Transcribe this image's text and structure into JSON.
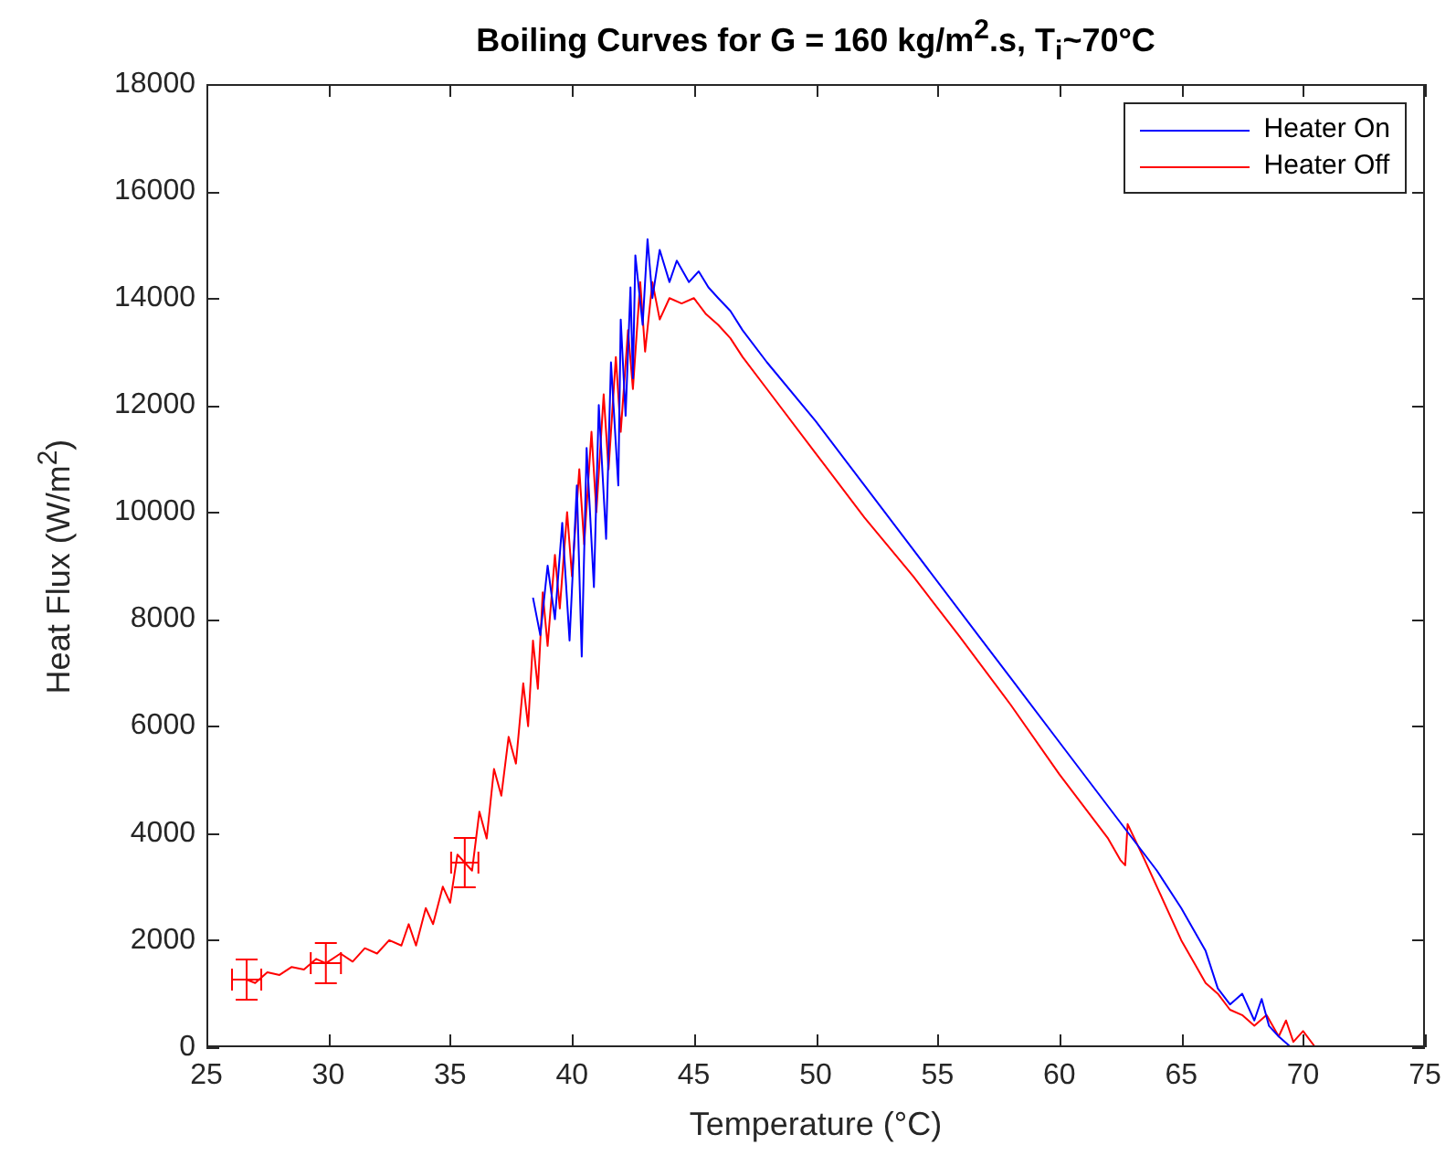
{
  "chart_data": {
    "type": "line",
    "title": "Boiling Curves for G = 160 kg/m$^{2}$.s, T$_{i}$~70°C",
    "xlabel": "Temperature (°C)",
    "ylabel": "Heat Flux (W/m$^{2}$)",
    "xlim": [
      25,
      75
    ],
    "xticks": [
      25,
      30,
      35,
      40,
      45,
      50,
      55,
      60,
      65,
      70,
      75
    ],
    "ylim": [
      0,
      18000
    ],
    "yticks": [
      0,
      2000,
      4000,
      6000,
      8000,
      10000,
      12000,
      14000,
      16000,
      18000
    ],
    "grid": false,
    "legend": "top right",
    "marker": "none",
    "line_style": "solid",
    "series": [
      {
        "name": "Heater On",
        "color": "#0000ff",
        "x": [
          38.4,
          38.7,
          39,
          39.3,
          39.6,
          39.9,
          40.2,
          40.4,
          40.6,
          40.9,
          41.1,
          41.4,
          41.6,
          41.9,
          42,
          42.2,
          42.4,
          42.5,
          42.6,
          42.9,
          43.1,
          43.3,
          43.6,
          44,
          44.3,
          44.8,
          45.2,
          45.6,
          46,
          46.5,
          47,
          48,
          50,
          52,
          54,
          56.7,
          58,
          60,
          62,
          64,
          65,
          66,
          66.5,
          67,
          67.5,
          68,
          68.3,
          68.6,
          69,
          69.5
        ],
        "values": [
          8400,
          7700,
          9000,
          8000,
          9800,
          7600,
          10500,
          7300,
          11200,
          8600,
          12000,
          9500,
          12800,
          10500,
          13600,
          11800,
          14200,
          12500,
          14800,
          13500,
          15100,
          14000,
          14900,
          14300,
          14700,
          14300,
          14500,
          14200,
          14000,
          13760,
          13400,
          12800,
          11700,
          10500,
          9300,
          7680,
          6900,
          5700,
          4500,
          3300,
          2600,
          1800,
          1100,
          800,
          1000,
          500,
          900,
          400,
          200,
          0
        ]
      },
      {
        "name": "Heater Off",
        "color": "#ff0000",
        "x": [
          26.65,
          27,
          27.5,
          28,
          28.5,
          29,
          29.5,
          29.9,
          30.5,
          31,
          31.5,
          32,
          32.5,
          33,
          33.3,
          33.6,
          34,
          34.3,
          34.7,
          35,
          35.3,
          35.6,
          35.9,
          36.2,
          36.5,
          36.8,
          37.1,
          37.4,
          37.7,
          38,
          38.2,
          38.4,
          38.6,
          38.8,
          39,
          39.3,
          39.5,
          39.8,
          40,
          40.3,
          40.5,
          40.8,
          41,
          41.3,
          41.5,
          41.8,
          42,
          42.3,
          42.5,
          42.8,
          43,
          43.3,
          43.6,
          44,
          44.5,
          45,
          45.5,
          46,
          46.5,
          47,
          48,
          50,
          52,
          54,
          55.9,
          58,
          60,
          62,
          62.5,
          62.7,
          62.8,
          63.5,
          64,
          64.5,
          65,
          65.5,
          66,
          66.5,
          67,
          67.5,
          68,
          68.5,
          69,
          69.3,
          69.6,
          70,
          70.5
        ],
        "values": [
          1264,
          1200,
          1400,
          1350,
          1500,
          1450,
          1650,
          1570,
          1750,
          1600,
          1850,
          1750,
          2000,
          1900,
          2300,
          1900,
          2600,
          2300,
          3000,
          2700,
          3600,
          3450,
          3300,
          4400,
          3900,
          5200,
          4700,
          5800,
          5300,
          6800,
          6000,
          7600,
          6700,
          8500,
          7500,
          9200,
          8200,
          10000,
          8800,
          10800,
          9400,
          11500,
          10000,
          12200,
          10800,
          12900,
          11500,
          13400,
          12300,
          14300,
          13000,
          14300,
          13600,
          14000,
          13900,
          14000,
          13700,
          13500,
          13250,
          12900,
          12300,
          11100,
          9900,
          8800,
          7680,
          6400,
          5100,
          3900,
          3500,
          3400,
          4170,
          3500,
          3000,
          2500,
          2000,
          1600,
          1200,
          1000,
          700,
          600,
          400,
          600,
          200,
          500,
          100,
          300,
          0
        ],
        "errors": [
          375,
          null,
          null,
          null,
          null,
          null,
          null,
          375,
          null,
          null,
          null,
          null,
          null,
          null,
          null,
          null,
          null,
          null,
          null,
          null,
          null,
          460,
          null,
          null,
          null,
          null,
          null,
          null,
          null,
          null,
          null,
          null,
          null,
          null,
          null,
          null,
          null,
          null,
          null,
          null,
          null,
          null,
          null,
          null,
          null,
          null,
          null,
          null,
          null,
          null,
          null,
          null,
          null,
          null,
          null,
          null,
          null,
          null,
          null,
          null,
          null,
          null,
          null,
          null,
          null,
          null,
          null,
          null,
          null,
          null,
          null,
          null,
          null,
          null,
          null,
          null,
          null,
          null,
          null,
          null,
          null,
          null,
          null,
          null,
          null,
          null,
          null
        ],
        "xerrors": [
          0.6,
          null,
          null,
          null,
          null,
          null,
          null,
          0.62,
          null,
          null,
          null,
          null,
          null,
          null,
          null,
          null,
          null,
          null,
          null,
          null,
          null,
          0.56,
          null,
          null,
          null,
          null,
          null,
          null,
          null,
          null,
          null,
          null,
          null,
          null,
          null,
          null,
          null,
          null,
          null,
          null,
          null,
          null,
          null,
          null,
          null,
          null,
          null,
          null,
          null,
          null,
          null,
          null,
          null,
          null,
          null,
          null,
          null,
          null,
          null,
          null,
          null,
          null,
          null,
          null,
          null,
          null,
          null,
          null,
          null,
          null,
          null,
          null,
          null,
          null,
          null,
          null,
          null,
          null,
          null,
          null,
          null,
          null,
          null,
          null,
          null,
          null,
          null
        ]
      }
    ]
  }
}
